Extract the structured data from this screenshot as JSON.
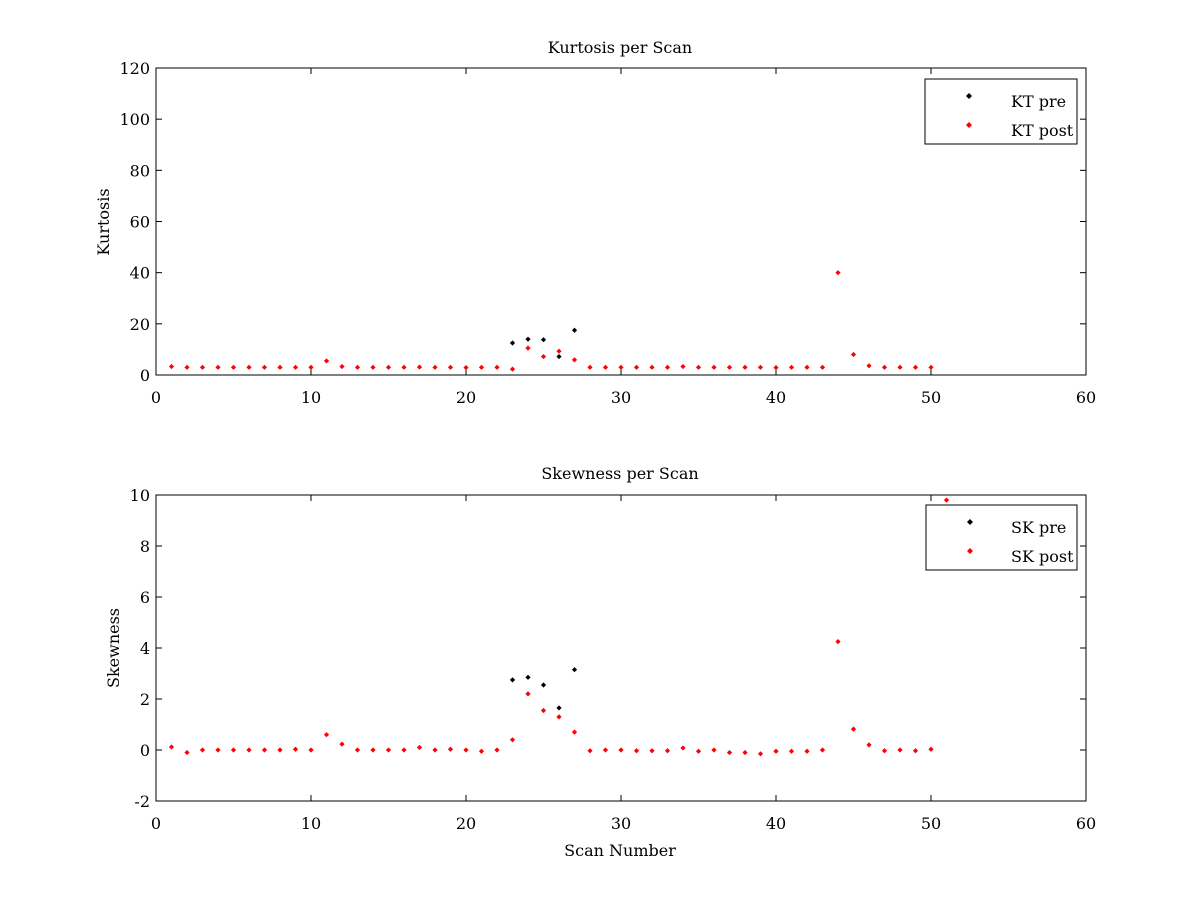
{
  "chart_data": [
    {
      "type": "scatter",
      "title": "Kurtosis per Scan",
      "xlabel": "",
      "ylabel": "Kurtosis",
      "xlim": [
        0,
        60
      ],
      "ylim": [
        0,
        120
      ],
      "xticks": [
        0,
        10,
        20,
        30,
        40,
        50,
        60
      ],
      "yticks": [
        0,
        20,
        40,
        60,
        80,
        100,
        120
      ],
      "legend_position": "top-right",
      "grid": false,
      "series": [
        {
          "name": "KT pre",
          "color": "#000000",
          "marker": "diamond",
          "x": [
            23,
            24,
            25,
            26,
            27
          ],
          "y": [
            12.5,
            14.0,
            13.8,
            7.2,
            17.5
          ]
        },
        {
          "name": "KT post",
          "color": "#ff0000",
          "marker": "diamond",
          "x": [
            1,
            2,
            3,
            4,
            5,
            6,
            7,
            8,
            9,
            10,
            11,
            12,
            13,
            14,
            15,
            16,
            17,
            18,
            19,
            20,
            21,
            22,
            23,
            24,
            25,
            26,
            27,
            28,
            29,
            30,
            31,
            32,
            33,
            34,
            35,
            36,
            37,
            38,
            39,
            40,
            41,
            42,
            43,
            44,
            45,
            46,
            47,
            48,
            49,
            50
          ],
          "y": [
            3.3,
            3.0,
            3.0,
            3.0,
            3.0,
            3.0,
            3.0,
            3.0,
            3.0,
            3.0,
            5.5,
            3.3,
            3.0,
            3.0,
            3.0,
            3.0,
            3.1,
            3.0,
            3.0,
            2.9,
            3.0,
            3.0,
            2.3,
            10.5,
            7.2,
            9.3,
            5.9,
            3.0,
            3.0,
            3.0,
            3.0,
            3.0,
            3.0,
            3.3,
            3.0,
            3.0,
            3.0,
            3.0,
            3.0,
            2.9,
            3.0,
            3.0,
            3.0,
            40.0,
            8.0,
            3.6,
            3.0,
            3.0,
            3.0,
            3.0
          ]
        }
      ]
    },
    {
      "type": "scatter",
      "title": "Skewness per Scan",
      "xlabel": "Scan Number",
      "ylabel": "Skewness",
      "xlim": [
        0,
        60
      ],
      "ylim": [
        -2,
        10
      ],
      "xticks": [
        0,
        10,
        20,
        30,
        40,
        50,
        60
      ],
      "yticks": [
        -2,
        0,
        2,
        4,
        6,
        8,
        10
      ],
      "legend_position": "top-right",
      "grid": false,
      "series": [
        {
          "name": "SK pre",
          "color": "#000000",
          "marker": "diamond",
          "x": [
            23,
            24,
            25,
            26,
            27
          ],
          "y": [
            2.75,
            2.85,
            2.55,
            1.65,
            3.15
          ]
        },
        {
          "name": "SK post",
          "color": "#ff0000",
          "marker": "diamond",
          "x": [
            1,
            2,
            3,
            4,
            5,
            6,
            7,
            8,
            9,
            10,
            11,
            12,
            13,
            14,
            15,
            16,
            17,
            18,
            19,
            20,
            21,
            22,
            23,
            24,
            25,
            26,
            27,
            28,
            29,
            30,
            31,
            32,
            33,
            34,
            35,
            36,
            37,
            38,
            39,
            40,
            41,
            42,
            43,
            44,
            45,
            46,
            47,
            48,
            49,
            50,
            51
          ],
          "y": [
            0.12,
            -0.1,
            0.0,
            0.0,
            0.0,
            0.0,
            0.0,
            0.0,
            0.03,
            0.0,
            0.6,
            0.23,
            0.0,
            0.0,
            0.0,
            0.0,
            0.1,
            0.0,
            0.03,
            0.0,
            -0.05,
            0.0,
            0.4,
            2.2,
            1.55,
            1.3,
            0.7,
            -0.03,
            0.0,
            0.0,
            -0.03,
            -0.03,
            -0.03,
            0.08,
            -0.05,
            0.0,
            -0.1,
            -0.1,
            -0.15,
            -0.05,
            -0.05,
            -0.05,
            0.0,
            4.25,
            0.82,
            0.2,
            -0.03,
            0.0,
            -0.03,
            0.03,
            9.8
          ]
        }
      ]
    }
  ]
}
